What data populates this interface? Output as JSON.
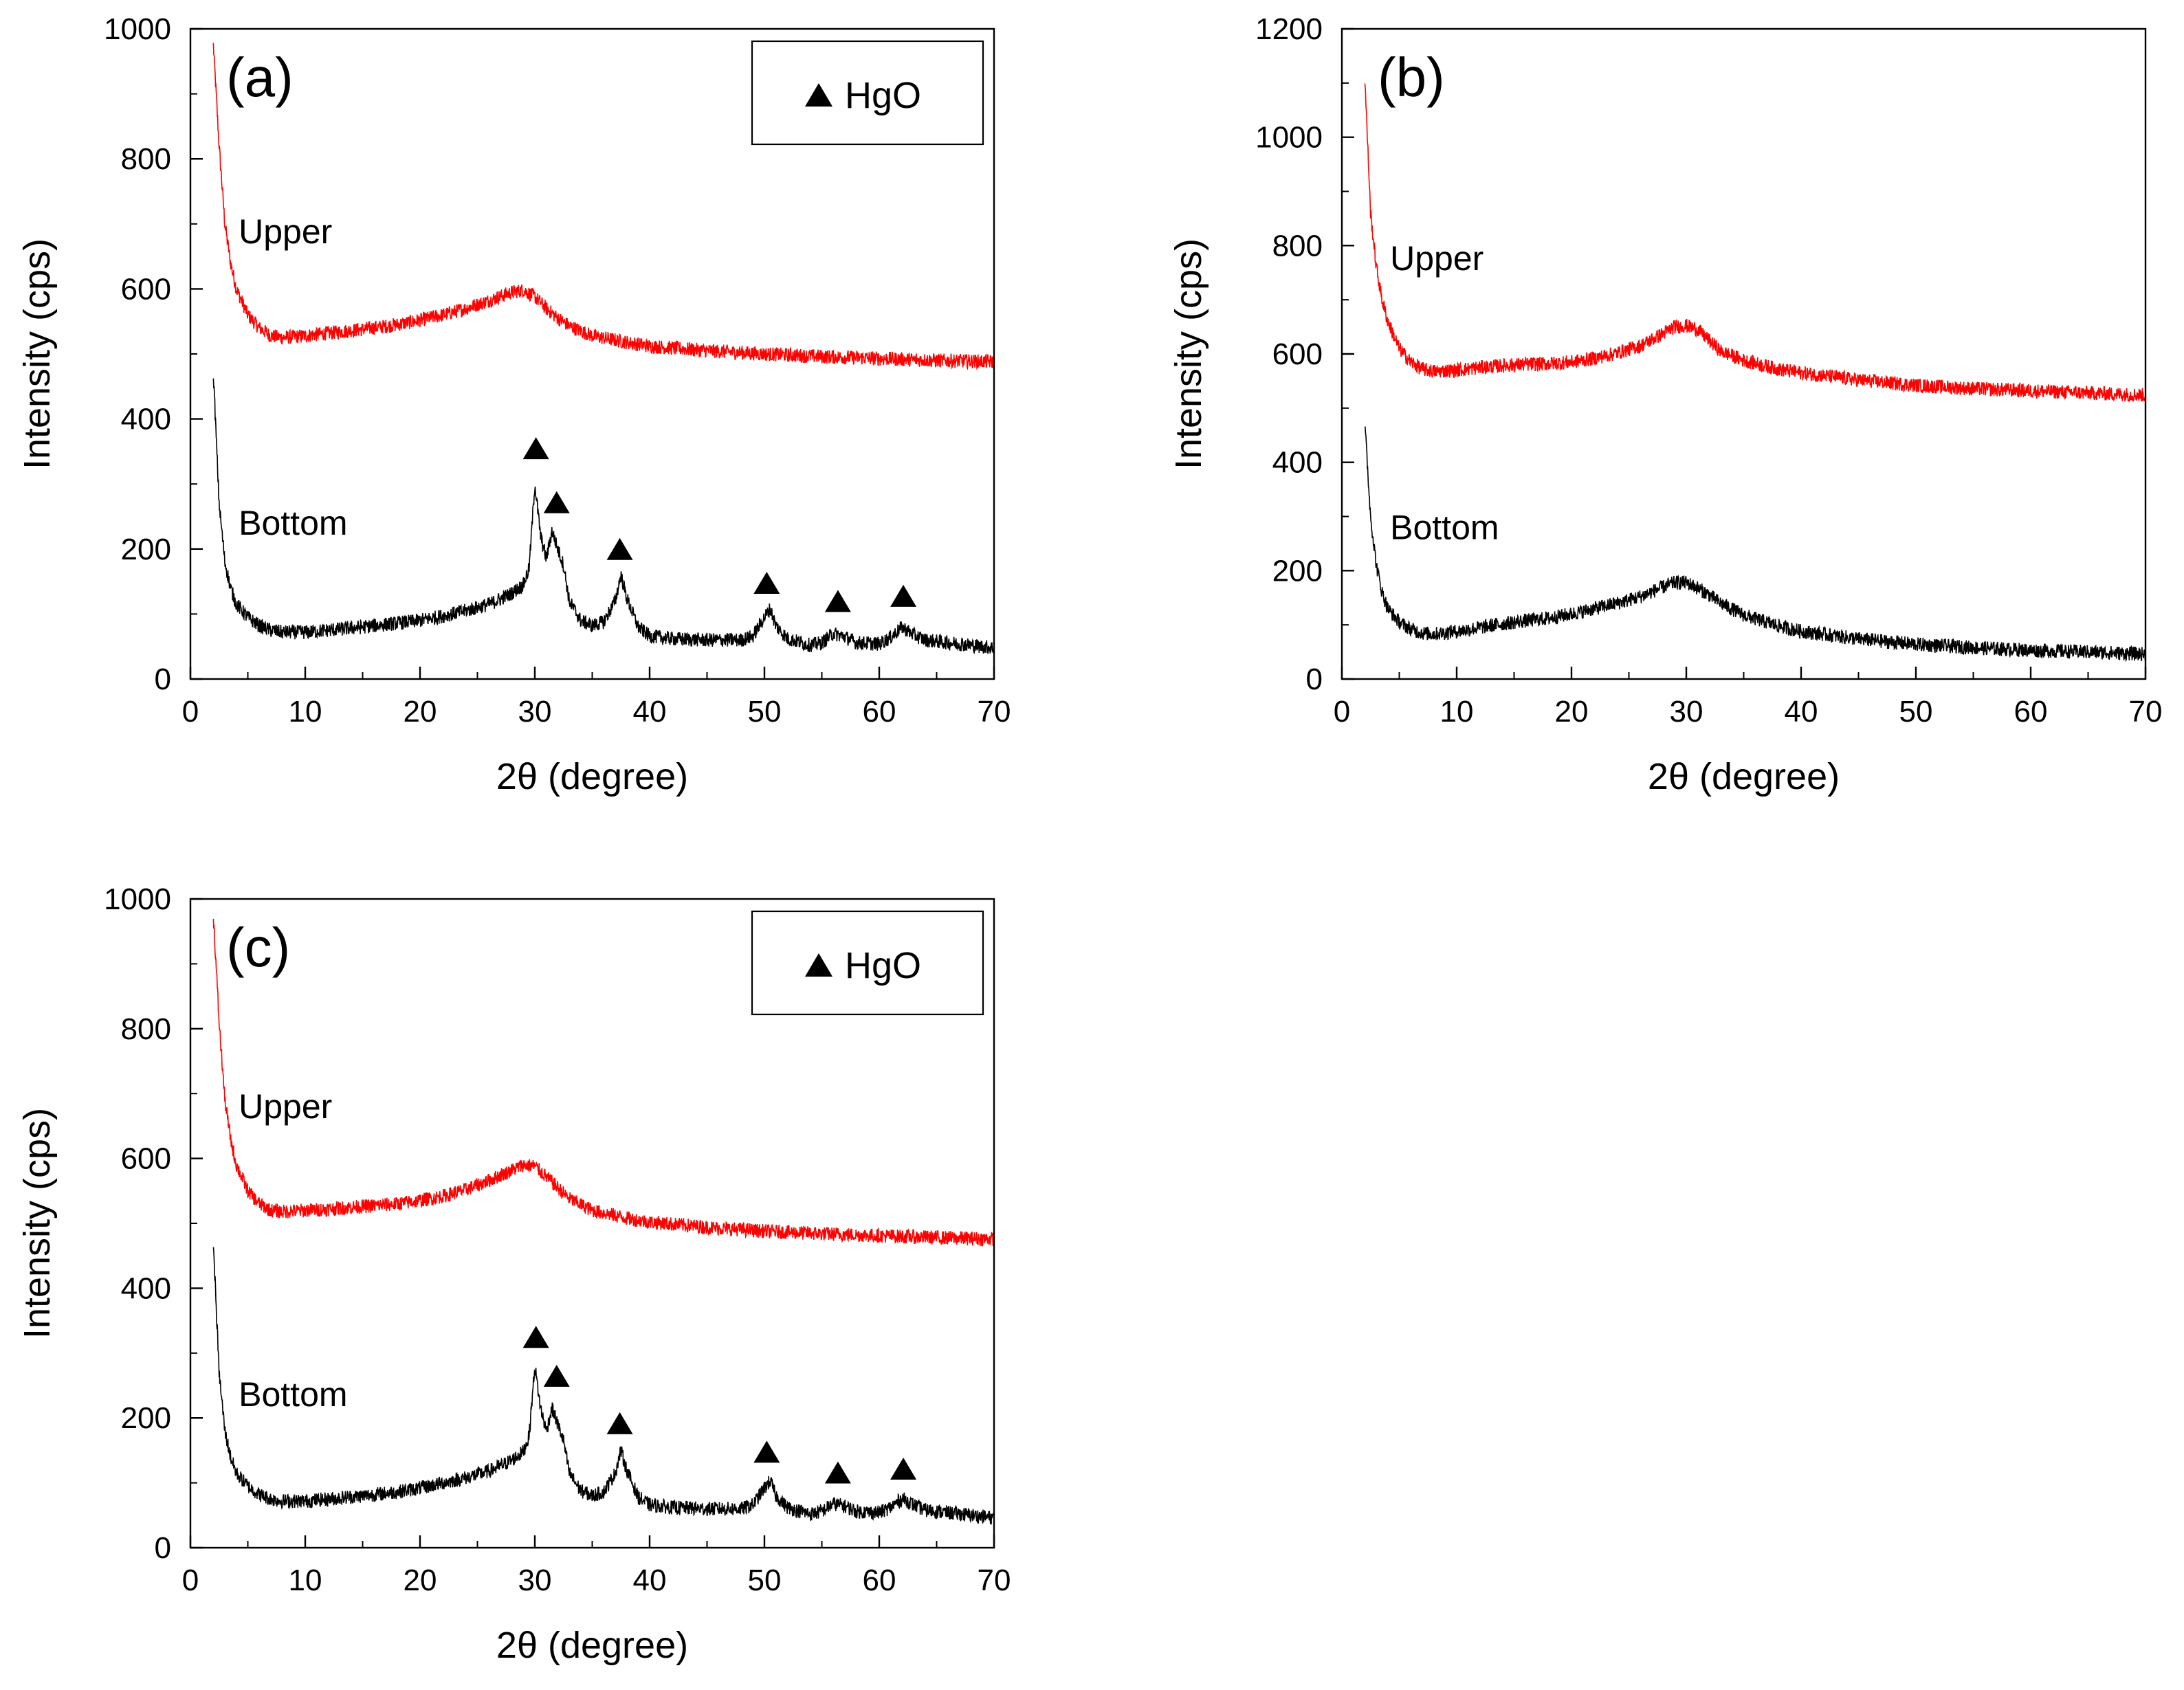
{
  "chart_data": [
    {
      "type": "line",
      "panel_label": "(a)",
      "xlabel": "2θ (degree)",
      "ylabel": "Intensity (cps)",
      "xlim": [
        0,
        70
      ],
      "ylim": [
        0,
        1000
      ],
      "xticks": [
        "0",
        "10",
        "20",
        "30",
        "40",
        "50",
        "60",
        "70"
      ],
      "yticks": [
        "0",
        "200",
        "400",
        "600",
        "800",
        "1000"
      ],
      "legend": {
        "label": "HgO",
        "marker": "triangle",
        "placement": "top-right"
      },
      "grid": false,
      "series": [
        {
          "label": "Upper",
          "color": "#ff0000",
          "x": [
            2,
            2.5,
            3,
            3.5,
            4,
            5,
            6,
            7,
            8,
            10,
            12,
            15,
            18,
            20,
            22,
            24,
            26,
            28,
            29,
            30,
            31,
            32,
            33,
            35,
            38,
            40,
            45,
            50,
            55,
            60,
            65,
            70
          ],
          "y": [
            975,
            820,
            700,
            640,
            600,
            560,
            540,
            528,
            525,
            528,
            532,
            538,
            545,
            552,
            560,
            570,
            582,
            595,
            598,
            588,
            570,
            555,
            543,
            528,
            518,
            512,
            505,
            500,
            496,
            493,
            490,
            488
          ]
        },
        {
          "label": "Bottom",
          "color": "#000000",
          "x": [
            2,
            2.5,
            3,
            3.5,
            4,
            5,
            6,
            7,
            8,
            10,
            12,
            15,
            18,
            20,
            22,
            24,
            26,
            27,
            28,
            29,
            29.5,
            30,
            30.5,
            31,
            31.5,
            32,
            32.5,
            33,
            34,
            35,
            36,
            37,
            37.5,
            38,
            39,
            40,
            42,
            45,
            48,
            49,
            50,
            50.5,
            51,
            52,
            54,
            55,
            56,
            57,
            58,
            60,
            61,
            62,
            63,
            64,
            66,
            68,
            70
          ],
          "y": [
            470,
            270,
            180,
            140,
            115,
            95,
            82,
            75,
            72,
            72,
            75,
            80,
            86,
            90,
            97,
            105,
            115,
            123,
            132,
            145,
            170,
            300,
            220,
            185,
            228,
            200,
            175,
            120,
            90,
            82,
            88,
            120,
            160,
            125,
            80,
            66,
            62,
            60,
            60,
            66,
            95,
            108,
            82,
            62,
            52,
            56,
            70,
            65,
            56,
            54,
            64,
            80,
            68,
            60,
            56,
            52,
            48
          ]
        }
      ],
      "markers": [
        {
          "x": 30.1,
          "y": 355,
          "label": "▲"
        },
        {
          "x": 31.9,
          "y": 272,
          "label": "▲"
        },
        {
          "x": 37.4,
          "y": 200,
          "label": "▲"
        },
        {
          "x": 50.2,
          "y": 148,
          "label": "▲"
        },
        {
          "x": 56.4,
          "y": 120,
          "label": "▲"
        },
        {
          "x": 62.1,
          "y": 128,
          "label": "▲"
        }
      ],
      "annotations": [
        {
          "text": "Upper",
          "x": 4.2,
          "y": 670
        },
        {
          "text": "Bottom",
          "x": 4.2,
          "y": 222
        }
      ]
    },
    {
      "type": "line",
      "panel_label": "(b)",
      "xlabel": "2θ (degree)",
      "ylabel": "Intensity (cps)",
      "xlim": [
        0,
        70
      ],
      "ylim": [
        0,
        1200
      ],
      "xticks": [
        "0",
        "10",
        "20",
        "30",
        "40",
        "50",
        "60",
        "70"
      ],
      "yticks": [
        "0",
        "200",
        "400",
        "600",
        "800",
        "1000",
        "1200"
      ],
      "grid": false,
      "series": [
        {
          "label": "Upper",
          "color": "#ff0000",
          "x": [
            2,
            2.5,
            3,
            3.5,
            4,
            5,
            6,
            7,
            8,
            10,
            12,
            15,
            18,
            20,
            22,
            24,
            26,
            28,
            29,
            30,
            31,
            32,
            33,
            35,
            38,
            40,
            45,
            50,
            55,
            60,
            65,
            70
          ],
          "y": [
            1110,
            860,
            760,
            700,
            660,
            610,
            585,
            572,
            568,
            570,
            575,
            580,
            582,
            585,
            592,
            602,
            615,
            638,
            650,
            652,
            645,
            625,
            605,
            588,
            572,
            565,
            552,
            542,
            536,
            532,
            528,
            524
          ]
        },
        {
          "label": "Bottom",
          "color": "#000000",
          "x": [
            2,
            2.5,
            3,
            3.5,
            4,
            5,
            6,
            7,
            8,
            10,
            12,
            15,
            18,
            20,
            22,
            24,
            26,
            28,
            29,
            30,
            31,
            32,
            33,
            35,
            38,
            40,
            45,
            50,
            55,
            60,
            65,
            70
          ],
          "y": [
            470,
            300,
            210,
            160,
            130,
            105,
            92,
            85,
            83,
            88,
            95,
            105,
            112,
            120,
            130,
            140,
            152,
            170,
            178,
            178,
            168,
            155,
            140,
            118,
            98,
            88,
            74,
            64,
            58,
            53,
            50,
            46
          ]
        }
      ],
      "annotations": [
        {
          "text": "Upper",
          "x": 4.2,
          "y": 755
        },
        {
          "text": "Bottom",
          "x": 4.2,
          "y": 258
        }
      ]
    },
    {
      "type": "line",
      "panel_label": "(c)",
      "xlabel": "2θ (degree)",
      "ylabel": "Intensity (cps)",
      "xlim": [
        0,
        70
      ],
      "ylim": [
        0,
        1000
      ],
      "xticks": [
        "0",
        "10",
        "20",
        "30",
        "40",
        "50",
        "60",
        "70"
      ],
      "yticks": [
        "0",
        "200",
        "400",
        "600",
        "800",
        "1000"
      ],
      "legend": {
        "label": "HgO",
        "marker": "triangle",
        "placement": "top-right"
      },
      "grid": false,
      "series": [
        {
          "label": "Upper",
          "color": "#ff0000",
          "x": [
            2,
            2.5,
            3,
            3.5,
            4,
            5,
            6,
            7,
            8,
            10,
            12,
            15,
            18,
            20,
            22,
            24,
            26,
            28,
            29,
            30,
            31,
            32,
            33,
            35,
            38,
            40,
            45,
            50,
            55,
            60,
            65,
            70
          ],
          "y": [
            975,
            810,
            690,
            630,
            590,
            550,
            530,
            520,
            518,
            520,
            522,
            526,
            530,
            535,
            542,
            552,
            566,
            582,
            590,
            588,
            572,
            555,
            538,
            520,
            508,
            502,
            494,
            488,
            484,
            481,
            478,
            476
          ]
        },
        {
          "label": "Bottom",
          "color": "#000000",
          "x": [
            2,
            2.5,
            3,
            3.5,
            4,
            5,
            6,
            7,
            8,
            10,
            12,
            15,
            18,
            20,
            22,
            24,
            26,
            27,
            28,
            29,
            29.5,
            30,
            30.5,
            31,
            31.5,
            32,
            32.5,
            33,
            34,
            35,
            36,
            37,
            37.5,
            38,
            39,
            40,
            42,
            45,
            48,
            49,
            50,
            50.5,
            51,
            52,
            54,
            55,
            56,
            57,
            58,
            60,
            61,
            62,
            63,
            64,
            66,
            68,
            70
          ],
          "y": [
            470,
            270,
            180,
            140,
            115,
            95,
            82,
            75,
            72,
            72,
            75,
            80,
            86,
            92,
            100,
            108,
            118,
            126,
            135,
            148,
            172,
            280,
            215,
            180,
            215,
            190,
            165,
            115,
            88,
            80,
            86,
            115,
            150,
            120,
            78,
            66,
            62,
            60,
            60,
            66,
            92,
            103,
            80,
            62,
            52,
            56,
            68,
            64,
            56,
            54,
            62,
            76,
            66,
            58,
            54,
            50,
            46
          ]
        }
      ],
      "markers": [
        {
          "x": 30.1,
          "y": 325,
          "label": "▲"
        },
        {
          "x": 31.9,
          "y": 265,
          "label": "▲"
        },
        {
          "x": 37.4,
          "y": 192,
          "label": "▲"
        },
        {
          "x": 50.2,
          "y": 148,
          "label": "▲"
        },
        {
          "x": 56.4,
          "y": 116,
          "label": "▲"
        },
        {
          "x": 62.1,
          "y": 122,
          "label": "▲"
        }
      ],
      "annotations": [
        {
          "text": "Upper",
          "x": 4.2,
          "y": 662
        },
        {
          "text": "Bottom",
          "x": 4.2,
          "y": 218
        }
      ]
    }
  ]
}
